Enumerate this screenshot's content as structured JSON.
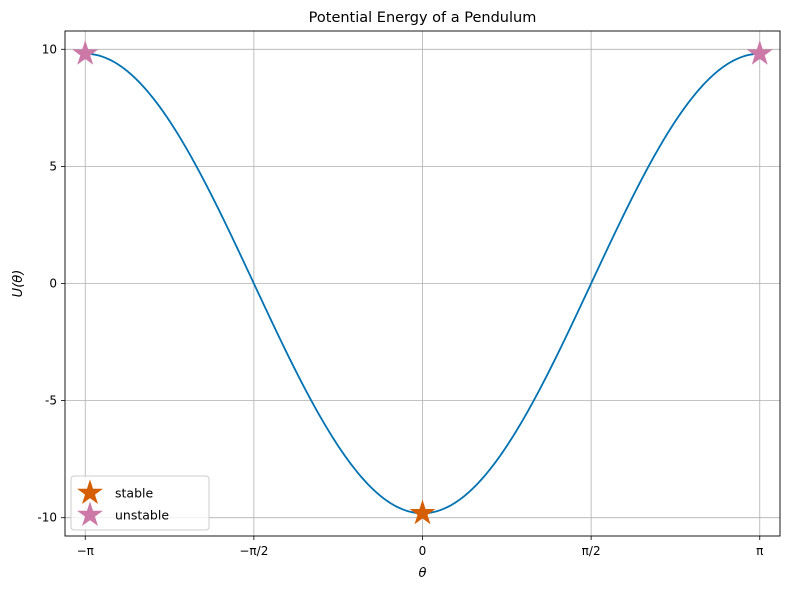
{
  "chart_data": {
    "type": "line",
    "title": "Potential Energy of a Pendulum",
    "xlabel": "θ",
    "ylabel": "U(θ)",
    "xlim": [
      -3.3301,
      3.3301
    ],
    "ylim": [
      -10.781,
      10.781
    ],
    "xticks": [
      {
        "value": -3.14159,
        "label": "−π"
      },
      {
        "value": -1.5708,
        "label": "−π/2"
      },
      {
        "value": 0,
        "label": "0"
      },
      {
        "value": 1.5708,
        "label": "π/2"
      },
      {
        "value": 3.14159,
        "label": "π"
      }
    ],
    "yticks": [
      {
        "value": 10,
        "label": "10"
      },
      {
        "value": 5,
        "label": "5"
      },
      {
        "value": 0,
        "label": "0"
      },
      {
        "value": -5,
        "label": "-5"
      },
      {
        "value": -10,
        "label": "-10"
      }
    ],
    "grid": true,
    "legend_position": "lower-left",
    "curve": {
      "formula": "U = -9.81 * cos(theta)",
      "amplitude": 9.81,
      "x_start": -3.14159,
      "x_end": 3.14159,
      "color": "#0072b2"
    },
    "series": [
      {
        "name": "stable",
        "marker": "star",
        "color": "#d55e00",
        "points": [
          {
            "x": 0,
            "y": -9.81
          }
        ]
      },
      {
        "name": "unstable",
        "marker": "star",
        "color": "#cc79a7",
        "points": [
          {
            "x": -3.14159,
            "y": 9.81
          },
          {
            "x": 3.14159,
            "y": 9.81
          }
        ]
      }
    ]
  }
}
